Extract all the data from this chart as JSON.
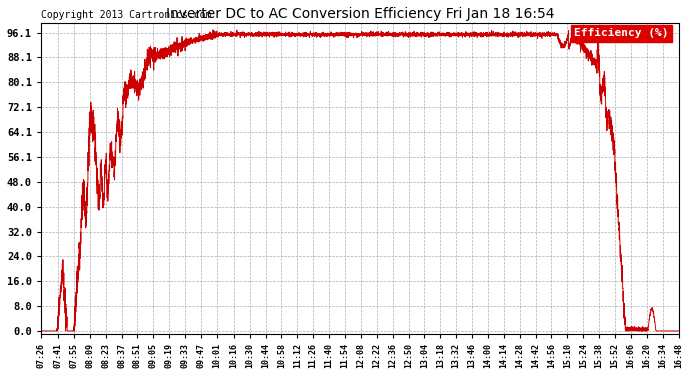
{
  "title": "Inverter DC to AC Conversion Efficiency Fri Jan 18 16:54",
  "copyright": "Copyright 2013 Cartronics.com",
  "legend_label": "Efficiency (%)",
  "legend_bg": "#dd0000",
  "legend_fg": "#ffffff",
  "line_color": "#cc0000",
  "background_color": "#ffffff",
  "plot_bg": "#ffffff",
  "grid_color": "#999999",
  "yticks": [
    0.0,
    8.0,
    16.0,
    24.0,
    32.0,
    40.0,
    48.0,
    56.1,
    64.1,
    72.1,
    80.1,
    88.1,
    96.1
  ],
  "ylim": [
    0.0,
    100.0
  ],
  "xtick_labels": [
    "07:26",
    "07:41",
    "07:55",
    "08:09",
    "08:23",
    "08:37",
    "08:51",
    "09:05",
    "09:19",
    "09:33",
    "09:47",
    "10:01",
    "10:16",
    "10:30",
    "10:44",
    "10:58",
    "11:12",
    "11:26",
    "11:40",
    "11:54",
    "12:08",
    "12:22",
    "12:36",
    "12:50",
    "13:04",
    "13:18",
    "13:32",
    "13:46",
    "14:00",
    "14:14",
    "14:28",
    "14:42",
    "14:56",
    "15:10",
    "15:24",
    "15:38",
    "15:52",
    "16:06",
    "16:20",
    "16:34",
    "16:48"
  ]
}
